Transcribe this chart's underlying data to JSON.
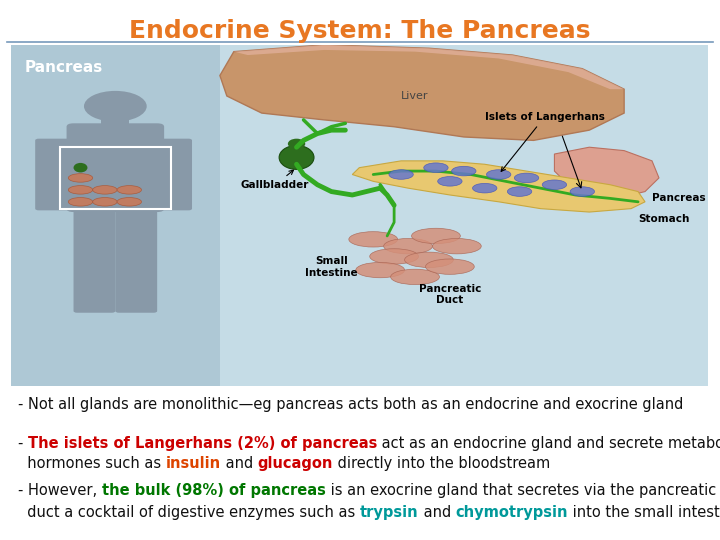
{
  "title": "Endocrine System: The Pancreas",
  "title_color": "#E87722",
  "title_fontsize": 18,
  "bg_color": "#ffffff",
  "bullet1": "- Not all glands are monolithic—eg pancreas acts both as an endocrine and exocrine gland",
  "b2_dash": "- ",
  "b2_red": "The islets of Langerhans (2%) of pancreas",
  "b2_black1": " act as an endocrine gland and secrete metabolic",
  "b2_line2_black1": "  hormones such as ",
  "b2_orange": "insulin",
  "b2_black2": " and ",
  "b2_red2": "glucagon",
  "b2_black3": " directly into the bloodstream",
  "b3_dash": "- However, ",
  "b3_green": "the bulk (98%) of pancreas",
  "b3_black1": " is an exocrine gland that secretes via the pancreatic",
  "b3_line2_black1": "  duct a cocktail of digestive enzymes such as ",
  "b3_teal1": "trypsin",
  "b3_black2": " and ",
  "b3_teal2": "chymotrypsin",
  "b3_black3": " into the small intestine",
  "color_red": "#cc0000",
  "color_orange": "#dd4400",
  "color_green": "#007700",
  "color_teal": "#00999a",
  "color_dark": "#111111",
  "font_size": 10.5,
  "line_color": "#7799bb",
  "img_bg": "#b8d0dc",
  "img_bg2": "#c5dce6",
  "liver_color": "#c8956a",
  "liver_edge": "#b07855",
  "pancreas_color": "#e8c870",
  "gb_color": "#2d6e1e",
  "stomach_color": "#dda090",
  "islet_color": "#6677cc",
  "duct_color": "#33aa22",
  "body_color": "#8899a8",
  "intestine_color": "#d4907a"
}
